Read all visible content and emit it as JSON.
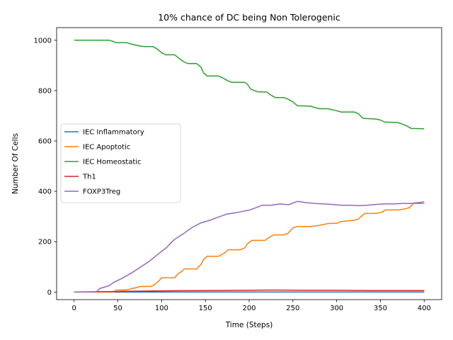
{
  "chart_data": {
    "type": "line",
    "title": "10% chance of DC being Non Tolerogenic",
    "xlabel": "Time (Steps)",
    "ylabel": "Number Of Cells",
    "xlim": [
      -20,
      420
    ],
    "ylim": [
      -30,
      1050
    ],
    "xticks": [
      0,
      50,
      100,
      150,
      200,
      250,
      300,
      350,
      400
    ],
    "yticks": [
      0,
      200,
      400,
      600,
      800,
      1000
    ],
    "grid": false,
    "legend_position": "center-left",
    "series": [
      {
        "name": "IEC Inflammatory",
        "color": "#1f77b4",
        "x": [
          0,
          400
        ],
        "y": [
          0,
          0
        ]
      },
      {
        "name": "IEC Apoptotic",
        "color": "#ff7f0e",
        "x": [
          0,
          45,
          48,
          58,
          62,
          68,
          75,
          80,
          88,
          92,
          97,
          100,
          115,
          118,
          122,
          126,
          140,
          145,
          148,
          152,
          165,
          172,
          176,
          190,
          195,
          198,
          203,
          218,
          222,
          228,
          240,
          245,
          250,
          255,
          270,
          280,
          290,
          300,
          305,
          320,
          325,
          328,
          332,
          345,
          352,
          356,
          370,
          378,
          383,
          388,
          400
        ],
        "y": [
          0,
          0,
          8,
          8,
          10,
          15,
          22,
          22,
          23,
          30,
          45,
          57,
          57,
          70,
          80,
          92,
          92,
          110,
          130,
          142,
          142,
          155,
          168,
          168,
          175,
          192,
          205,
          205,
          215,
          227,
          227,
          235,
          255,
          260,
          260,
          265,
          272,
          273,
          280,
          285,
          290,
          300,
          312,
          312,
          318,
          326,
          326,
          330,
          335,
          352,
          352
        ]
      },
      {
        "name": "IEC Homeostatic",
        "color": "#2ca02c",
        "x": [
          0,
          40,
          45,
          48,
          60,
          65,
          75,
          80,
          90,
          95,
          100,
          105,
          115,
          120,
          125,
          130,
          140,
          145,
          148,
          152,
          165,
          170,
          175,
          180,
          195,
          198,
          202,
          210,
          220,
          225,
          230,
          240,
          245,
          250,
          255,
          270,
          280,
          290,
          300,
          305,
          320,
          325,
          330,
          345,
          350,
          355,
          370,
          375,
          380,
          385,
          400
        ],
        "y": [
          1000,
          1000,
          995,
          990,
          990,
          985,
          977,
          975,
          975,
          965,
          950,
          942,
          942,
          928,
          915,
          907,
          907,
          893,
          870,
          858,
          858,
          850,
          840,
          833,
          833,
          825,
          805,
          795,
          795,
          782,
          772,
          772,
          765,
          755,
          740,
          738,
          728,
          728,
          720,
          715,
          715,
          708,
          690,
          687,
          683,
          675,
          673,
          667,
          660,
          650,
          648
        ]
      },
      {
        "name": "Th1",
        "color": "#d62728",
        "x": [
          0,
          45,
          60,
          100,
          150,
          200,
          230,
          260,
          300,
          340,
          400
        ],
        "y": [
          0,
          2,
          3,
          5,
          6,
          7,
          8,
          7,
          7,
          6,
          6
        ]
      },
      {
        "name": "FOXP3Treg",
        "color": "#9467bd",
        "x": [
          0,
          25,
          30,
          40,
          45,
          55,
          65,
          75,
          85,
          95,
          105,
          115,
          125,
          135,
          145,
          155,
          165,
          175,
          185,
          195,
          200,
          210,
          215,
          225,
          235,
          245,
          255,
          265,
          275,
          285,
          295,
          305,
          315,
          325,
          335,
          345,
          355,
          365,
          375,
          385,
          400
        ],
        "y": [
          0,
          0,
          15,
          25,
          38,
          55,
          75,
          97,
          120,
          148,
          175,
          210,
          232,
          257,
          275,
          285,
          298,
          310,
          315,
          322,
          325,
          338,
          345,
          345,
          350,
          347,
          360,
          355,
          352,
          350,
          348,
          345,
          345,
          343,
          345,
          348,
          350,
          350,
          352,
          352,
          358
        ]
      }
    ]
  }
}
